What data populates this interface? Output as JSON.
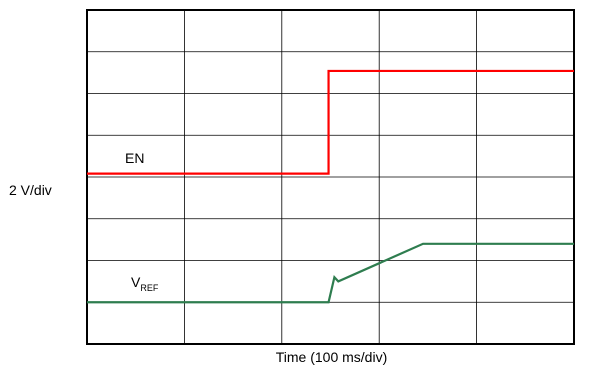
{
  "chart_data": {
    "type": "line",
    "xlabel": "Time (100 ms/div)",
    "ylabel": "2 V/div",
    "grid": true,
    "divisions": {
      "x": 5,
      "y": 8
    },
    "xlim": [
      0,
      5
    ],
    "ylim": [
      0,
      8
    ],
    "series": [
      {
        "name": "EN",
        "color": "#ff0000",
        "points": [
          [
            0,
            4.08
          ],
          [
            2.48,
            4.08
          ],
          [
            2.48,
            6.54
          ],
          [
            5.0,
            6.54
          ]
        ]
      },
      {
        "name": "VREF",
        "label_main": "V",
        "label_sub": "REF",
        "color": "#2e7d4f",
        "points": [
          [
            0,
            1.0
          ],
          [
            2.48,
            1.0
          ],
          [
            2.54,
            1.6
          ],
          [
            2.58,
            1.5
          ],
          [
            3.45,
            2.4
          ],
          [
            5.0,
            2.4
          ]
        ]
      }
    ]
  }
}
